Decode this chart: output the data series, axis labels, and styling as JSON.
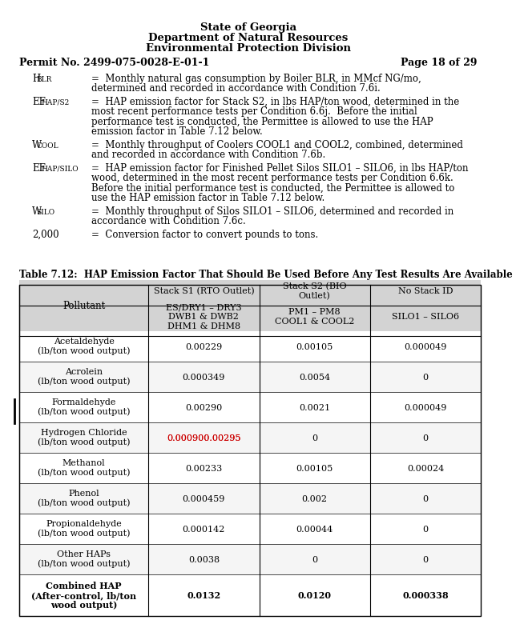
{
  "header_line1": "State of Georgia",
  "header_line2": "Department of Natural Resources",
  "header_line3": "Environmental Protection Division",
  "permit_no": "Permit No. 2499-075-0028-E-01-1",
  "page_no": "Page 18 of 29",
  "definitions": [
    {
      "symbol": "H",
      "subscript": "BLR",
      "text": "=  Monthly natural gas consumption by Boiler BLR, in MMcf NG/mo,\ndetermined and recorded in accordance with Condition 7.6i."
    },
    {
      "symbol": "EF",
      "subscript": "HAP/S2",
      "text": "=  HAP emission factor for Stack S2, in lbs HAP/ton wood, determined in the\nmost recent performance tests per Condition 6.6j.  Before the initial\nperformance test is conducted, the Permittee is allowed to use the HAP\nemission factor in Table 7.12 below."
    },
    {
      "symbol": "W",
      "subscript": "COOL",
      "text": "=  Monthly throughput of Coolers COOL1 and COOL2, combined, determined\nand recorded in accordance with Condition 7.6b."
    },
    {
      "symbol": "EF",
      "subscript": "HAP/SILO",
      "text": "=  HAP emission factor for Finished Pellet Silos SILO1 – SILO6, in lbs HAP/ton\nwood, determined in the most recent performance tests per Condition 6.6k.\nBefore the initial performance test is conducted, the Permittee is allowed to\nuse the HAP emission factor in Table 7.12 below."
    },
    {
      "symbol": "W",
      "subscript": "SILO",
      "text": "=  Monthly throughput of Silos SILO1 – SILO6, determined and recorded in\naccordance with Condition 7.6c."
    },
    {
      "symbol": "2,000",
      "subscript": "",
      "text": "=  Conversion factor to convert pounds to tons."
    }
  ],
  "table_title": "Table 7.12:  HAP Emission Factor That Should Be Used Before Any Test Results Are Available",
  "col_headers_top": [
    "Stack S1 (RTO Outlet)",
    "Stack S2 (BIO\nOutlet)",
    "No Stack ID"
  ],
  "col_headers_sub": [
    "ES/DRY1 – DRY3\nDWB1 & DWB2\nDHM1 & DHM8",
    "PM1 – PM8\nCOOL1 & COOL2",
    "SILO1 – SILO6"
  ],
  "pollutant_col": "Pollutant",
  "rows": [
    {
      "name": "Acetaldehyde\n(lb/ton wood output)",
      "s1": "0.00229",
      "s2": "0.00105",
      "ns": "0.000049",
      "bold": false,
      "s1_red": false
    },
    {
      "name": "Acrolein\n(lb/ton wood output)",
      "s1": "0.000349",
      "s2": "0.0054",
      "ns": "0",
      "bold": false,
      "s1_red": false
    },
    {
      "name": "Formaldehyde\n(lb/ton wood output)",
      "s1": "0.00290",
      "s2": "0.0021",
      "ns": "0.000049",
      "bold": false,
      "s1_red": false
    },
    {
      "name": "Hydrogen Chloride\n(lb/ton wood output)",
      "s1": "0.00090 0.00295",
      "s2": "0",
      "ns": "0",
      "bold": false,
      "s1_red": true
    },
    {
      "name": "Methanol\n(lb/ton wood output)",
      "s1": "0.00233",
      "s2": "0.00105",
      "ns": "0.00024",
      "bold": false,
      "s1_red": false
    },
    {
      "name": "Phenol\n(lb/ton wood output)",
      "s1": "0.000459",
      "s2": "0.002",
      "ns": "0",
      "bold": false,
      "s1_red": false
    },
    {
      "name": "Propionaldehyde\n(lb/ton wood output)",
      "s1": "0.000142",
      "s2": "0.00044",
      "ns": "0",
      "bold": false,
      "s1_red": false
    },
    {
      "name": "Other HAPs\n(lb/ton wood output)",
      "s1": "0.0038",
      "s2": "0",
      "ns": "0",
      "bold": false,
      "s1_red": false
    },
    {
      "name": "Combined HAP\n(After-control, lb/ton\nwood output)",
      "s1": "0.0132",
      "s2": "0.0120",
      "ns": "0.000338",
      "bold": true,
      "s1_red": false
    }
  ],
  "header_bg": "#d3d3d3",
  "row_bg_even": "#ffffff",
  "row_bg_odd": "#f5f5f5",
  "border_color": "#000000",
  "text_color": "#000000",
  "red_color": "#cc0000"
}
